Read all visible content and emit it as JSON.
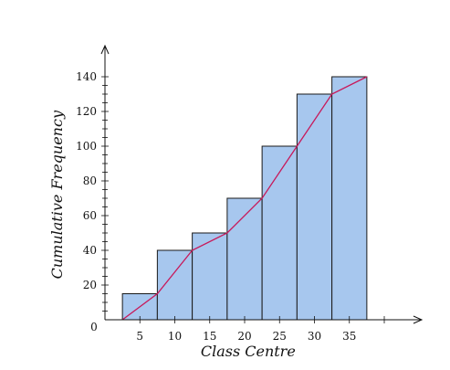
{
  "chart_data": {
    "type": "bar",
    "xlabel": "Class Centre",
    "ylabel": "Cumulative Frequency",
    "origin_label": "0",
    "x_ticks": [
      5,
      10,
      15,
      20,
      25,
      30,
      35
    ],
    "y_ticks": [
      20,
      40,
      60,
      80,
      100,
      120,
      140
    ],
    "xlim": [
      0,
      45
    ],
    "ylim": [
      0,
      140
    ],
    "bars": [
      {
        "from": 2.5,
        "to": 7.5,
        "value": 15
      },
      {
        "from": 7.5,
        "to": 12.5,
        "value": 40
      },
      {
        "from": 12.5,
        "to": 17.5,
        "value": 50
      },
      {
        "from": 17.5,
        "to": 22.5,
        "value": 70
      },
      {
        "from": 22.5,
        "to": 27.5,
        "value": 100
      },
      {
        "from": 27.5,
        "to": 32.5,
        "value": 130
      },
      {
        "from": 32.5,
        "to": 37.5,
        "value": 140
      }
    ],
    "ogive": {
      "x": [
        2.5,
        7.5,
        12.5,
        17.5,
        22.5,
        27.5,
        32.5,
        37.5
      ],
      "y": [
        0,
        15,
        40,
        50,
        70,
        100,
        130,
        140
      ]
    },
    "colors": {
      "bar_fill": "#a7c7ee",
      "bar_stroke": "#1a1a1a",
      "line": "#c8195a",
      "axis": "#111111"
    }
  }
}
